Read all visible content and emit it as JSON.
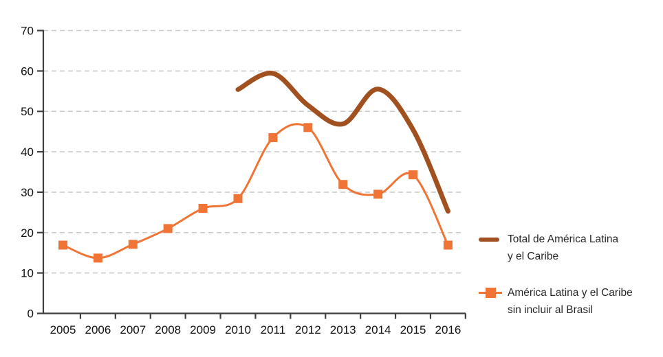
{
  "chart_data": {
    "type": "line",
    "title": "",
    "xlabel": "",
    "ylabel": "",
    "categories": [
      "2005",
      "2006",
      "2007",
      "2008",
      "2009",
      "2010",
      "2011",
      "2012",
      "2013",
      "2014",
      "2015",
      "2016"
    ],
    "series": [
      {
        "name": "Total de América Latina y el Caribe",
        "color": "#A0511F",
        "line_width": 7,
        "smooth": true,
        "markers": "none",
        "values": [
          null,
          null,
          null,
          null,
          null,
          55.4,
          59.4,
          51.5,
          46.9,
          55.5,
          45.5,
          25.3
        ]
      },
      {
        "name": "América Latina y el Caribe sin incluir al Brasil",
        "color": "#EF7435",
        "line_width": 3,
        "smooth": true,
        "markers": "square",
        "values": [
          16.9,
          13.7,
          17.1,
          21.0,
          26.0,
          28.4,
          43.5,
          46.0,
          31.9,
          29.5,
          34.3,
          16.9
        ]
      }
    ],
    "ylim": [
      0,
      70
    ],
    "y_ticks": [
      0,
      10,
      20,
      30,
      40,
      50,
      60,
      70
    ],
    "grid": "dashed-horizontal",
    "legend_position": "right"
  },
  "legend": {
    "items": [
      {
        "line1": "Total de América Latina",
        "line2": "y el Caribe"
      },
      {
        "line1": "América Latina y el Caribe",
        "line2": "sin incluir al Brasil"
      }
    ]
  },
  "colors": {
    "series_total": "#A0511F",
    "series_sin_brasil": "#EF7435",
    "gridline": "#CACACA",
    "axis": "#3F3F3F",
    "tick_label": "#111111",
    "legend_text": "#262626",
    "background": "#FFFFFF"
  }
}
